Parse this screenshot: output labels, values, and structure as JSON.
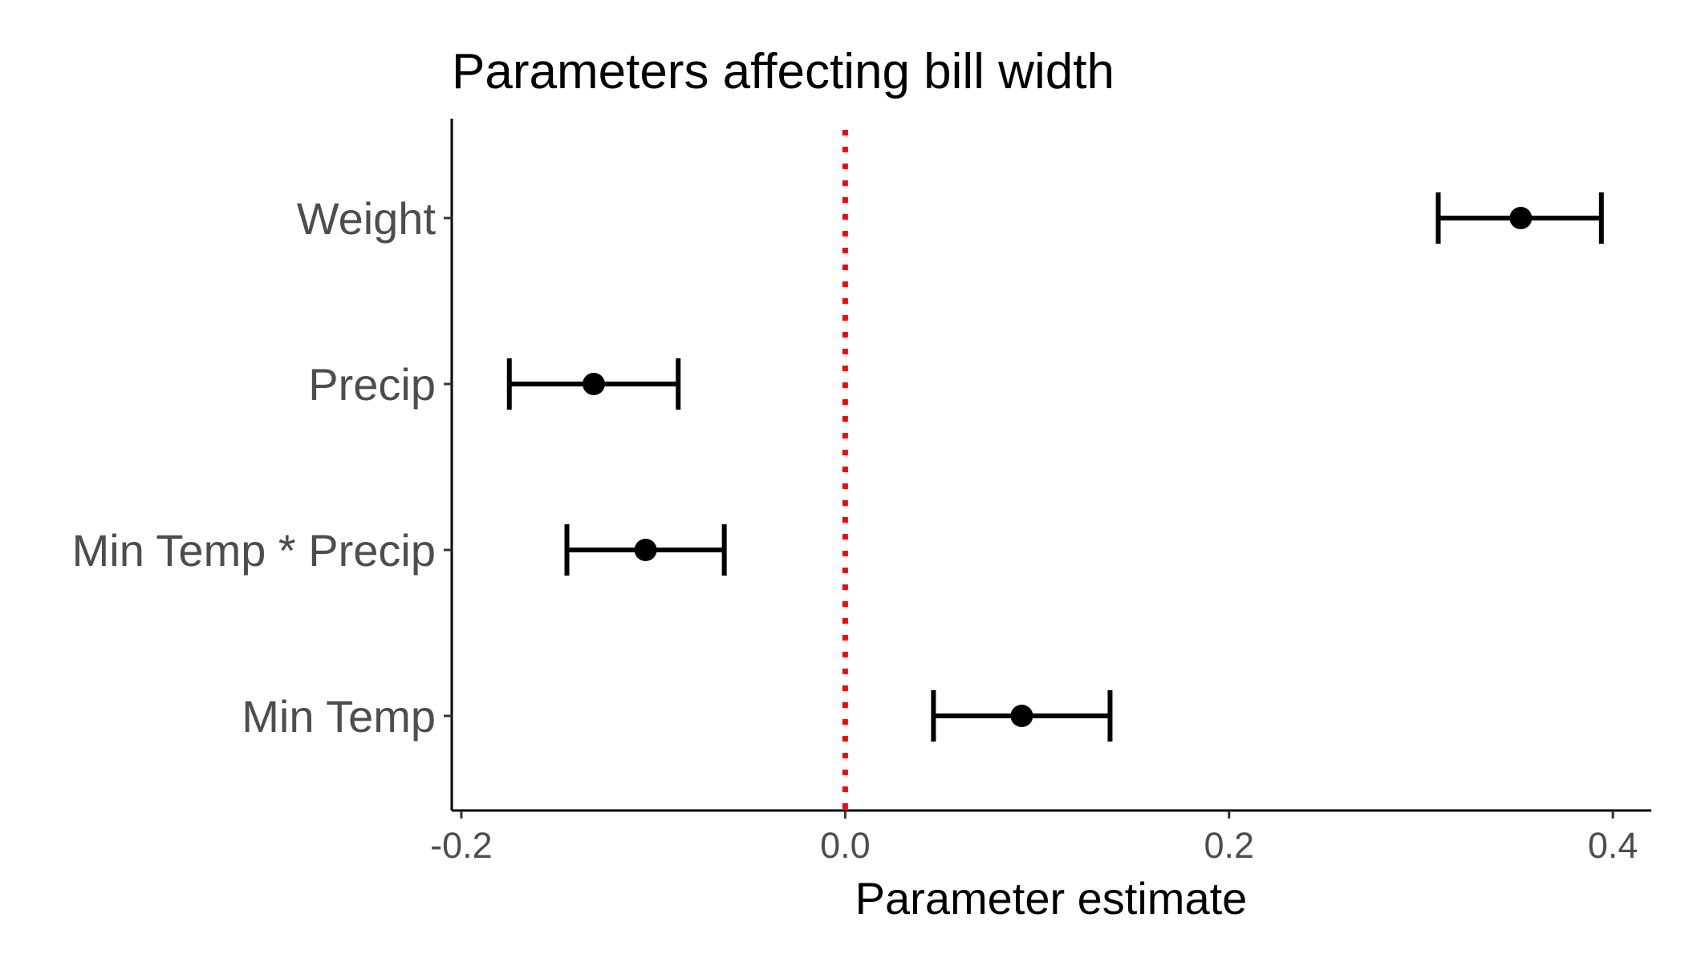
{
  "chart_data": {
    "type": "errorbar",
    "title": "Parameters affecting bill width",
    "xlabel": "Parameter estimate",
    "ylabel": "",
    "xlim": [
      -0.205,
      0.42
    ],
    "xticks": [
      -0.2,
      0.0,
      0.2,
      0.4
    ],
    "xtick_labels": [
      "-0.2",
      "0.0",
      "0.2",
      "0.4"
    ],
    "categories": [
      "Weight",
      "Precip",
      "Min Temp * Precip",
      "Min Temp"
    ],
    "estimates": [
      0.352,
      -0.131,
      -0.104,
      0.092
    ],
    "lower": [
      0.309,
      -0.175,
      -0.145,
      0.046
    ],
    "upper": [
      0.394,
      -0.087,
      -0.063,
      0.138
    ],
    "reference_line": {
      "x": 0,
      "style": "dotted",
      "color": "#ff0000"
    },
    "point_color": "#000000",
    "grid": false
  }
}
